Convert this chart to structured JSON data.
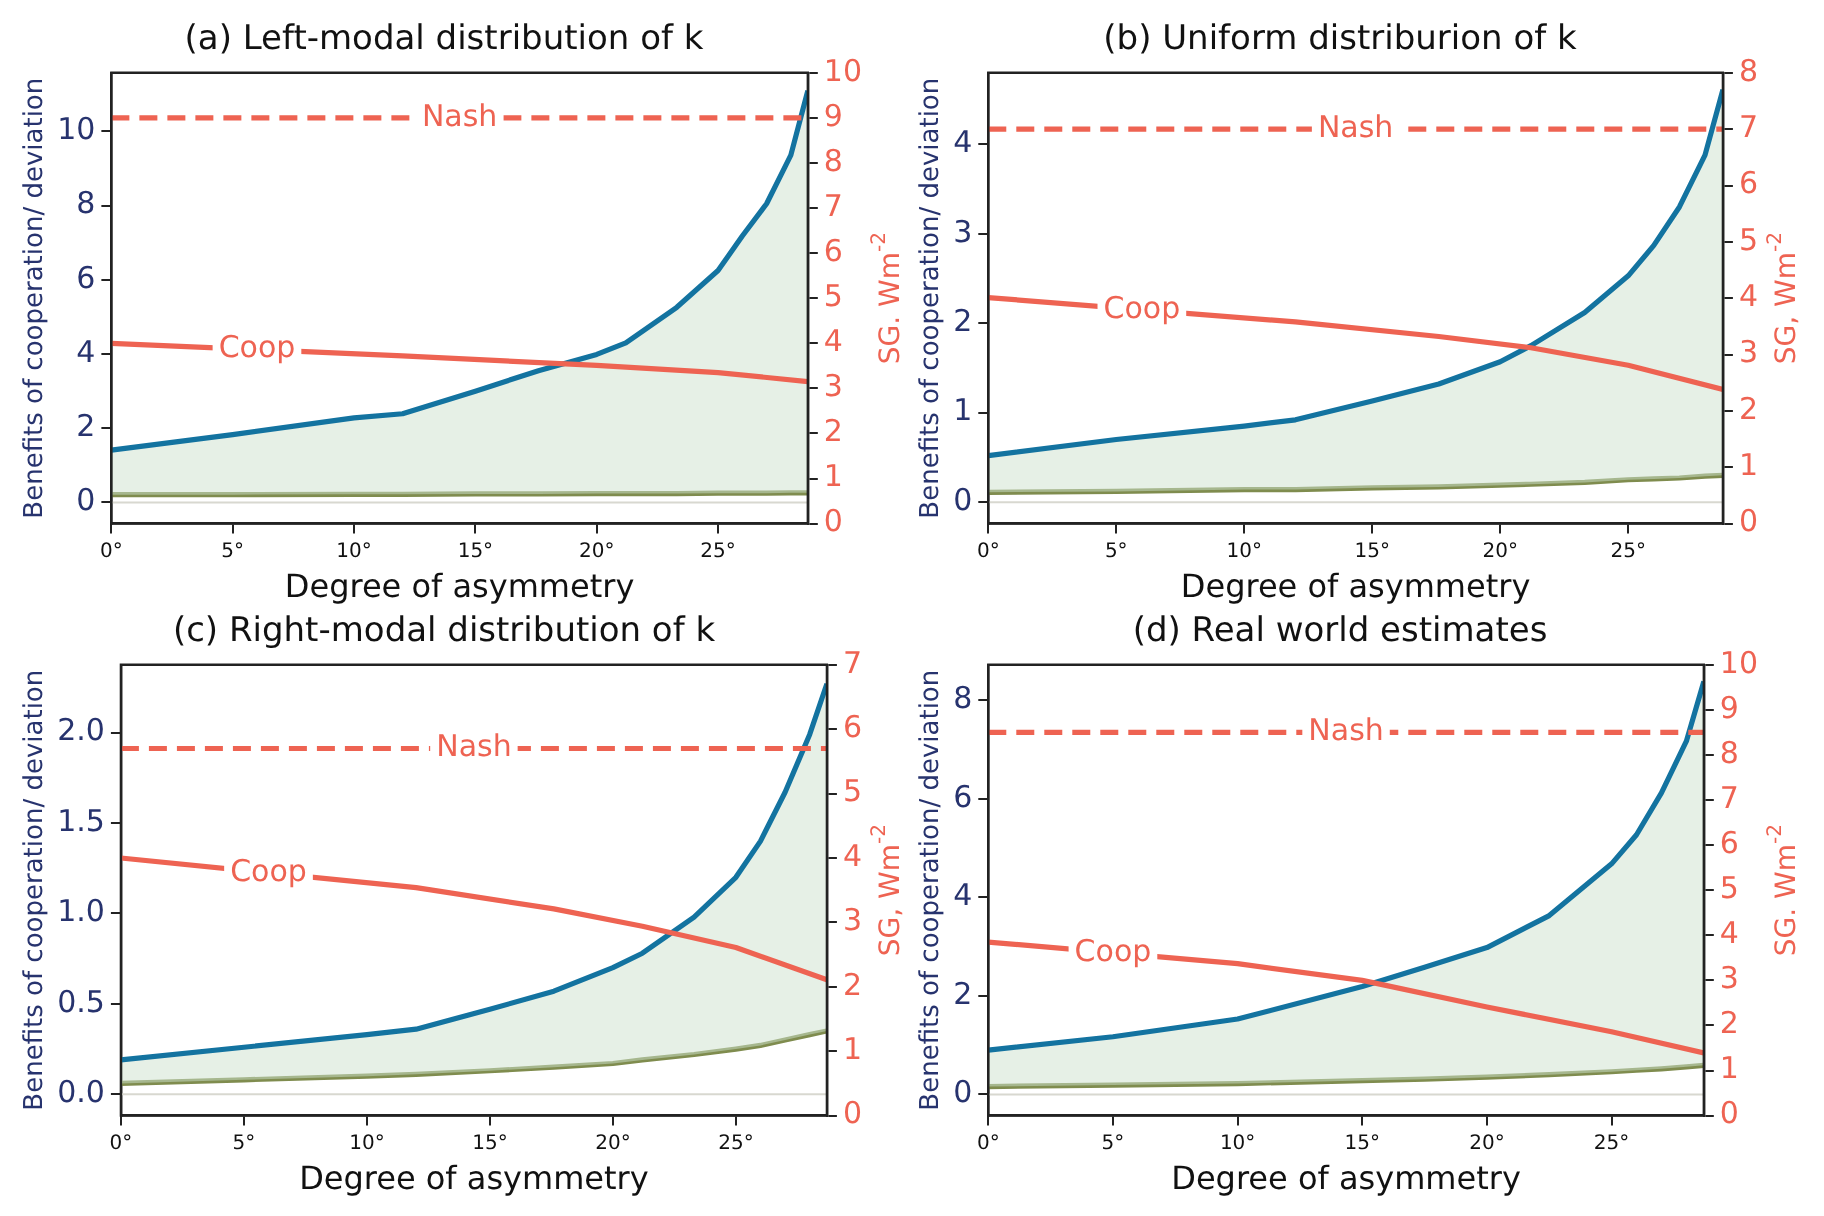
{
  "chart_data": [
    {
      "type": "line",
      "title": "(a) Left-modal distribution of k",
      "xlabel": "Degree of asymmetry",
      "ylabel": "Benefits of cooperation/ deviation",
      "y2label": "SG. Wm$^{-2}$",
      "marker": "none",
      "x": [
        0,
        5,
        10,
        12,
        15,
        17.6,
        20,
        21.2,
        23.3,
        25,
        26,
        27,
        28,
        28.7
      ],
      "series": [
        {
          "type": "area",
          "color": "#1373a0",
          "values": [
            1.41,
            1.83,
            2.28,
            2.39,
            3.0,
            3.55,
            3.99,
            4.3,
            5.26,
            6.25,
            7.18,
            8.05,
            9.36,
            11.1
          ]
        },
        {
          "color": "#7f8c4e",
          "values": [
            0.21,
            0.21,
            0.22,
            0.22,
            0.23,
            0.23,
            0.24,
            0.24,
            0.24,
            0.25,
            0.25,
            0.25,
            0.26,
            0.26
          ]
        },
        {
          "name": "Coop",
          "axis": "y2",
          "color": "#ee6352",
          "x": [
            0,
            12,
            20,
            25,
            28.7
          ],
          "values": [
            4.0,
            3.72,
            3.51,
            3.35,
            3.15
          ]
        },
        {
          "name": "Nash",
          "axis": "y2",
          "color": "#ee6352",
          "line_style": "dashed",
          "x": [
            0,
            28.7
          ],
          "values": [
            9.0,
            9.0
          ]
        }
      ],
      "ref_lines": [
        {
          "axis": "y",
          "value": 0,
          "color": "#d8d8d0"
        }
      ],
      "xlim": [
        0,
        28.7
      ],
      "xticks": [
        {
          "value": 0,
          "label": "0°"
        },
        {
          "value": 5,
          "label": "5°"
        },
        {
          "value": 10,
          "label": "10°"
        },
        {
          "value": 15,
          "label": "15°"
        },
        {
          "value": 20,
          "label": "20°"
        },
        {
          "value": 25,
          "label": "25°"
        }
      ],
      "ylim": [
        -0.57,
        11.58
      ],
      "yticks": [
        0,
        2,
        4,
        6,
        8,
        10
      ],
      "y2lim": [
        0,
        10
      ],
      "y2ticks": [
        0,
        1,
        2,
        3,
        4,
        5,
        6,
        7,
        8,
        9,
        10
      ]
    },
    {
      "type": "line",
      "title": "(b) Uniform distriburion of k",
      "xlabel": "Degree of asymmetry",
      "ylabel": "Benefits of cooperation/ deviation",
      "y2label": "SG, Wm$^{-2}$",
      "marker": "none",
      "x": [
        0,
        5,
        10,
        12,
        15,
        17.6,
        20,
        21.2,
        23.3,
        25,
        26,
        27,
        28,
        28.7
      ],
      "series": [
        {
          "type": "area",
          "color": "#1373a0",
          "values": [
            0.52,
            0.7,
            0.85,
            0.92,
            1.13,
            1.32,
            1.57,
            1.75,
            2.12,
            2.53,
            2.87,
            3.3,
            3.88,
            4.61
          ]
        },
        {
          "color": "#7f8c4e",
          "values": [
            0.11,
            0.12,
            0.14,
            0.14,
            0.16,
            0.17,
            0.19,
            0.2,
            0.22,
            0.25,
            0.26,
            0.27,
            0.29,
            0.3
          ]
        },
        {
          "name": "Coop",
          "axis": "y2",
          "color": "#ee6352",
          "x": [
            0,
            12,
            17.6,
            21.2,
            25,
            28.7
          ],
          "values": [
            4.01,
            3.58,
            3.32,
            3.12,
            2.81,
            2.38
          ]
        },
        {
          "name": "Nash",
          "axis": "y2",
          "color": "#ee6352",
          "line_style": "dashed",
          "x": [
            0,
            28.7
          ],
          "values": [
            7.0,
            7.0
          ]
        }
      ],
      "ref_lines": [
        {
          "axis": "y",
          "value": 0,
          "color": "#d8d8d0"
        }
      ],
      "xlim": [
        0,
        28.7
      ],
      "xticks": [
        {
          "value": 0,
          "label": "0°"
        },
        {
          "value": 5,
          "label": "5°"
        },
        {
          "value": 10,
          "label": "10°"
        },
        {
          "value": 15,
          "label": "15°"
        },
        {
          "value": 20,
          "label": "20°"
        },
        {
          "value": 25,
          "label": "25°"
        }
      ],
      "ylim": [
        -0.24,
        4.8
      ],
      "yticks": [
        0,
        1,
        2,
        3,
        4
      ],
      "y2lim": [
        0,
        8
      ],
      "y2ticks": [
        0,
        1,
        2,
        3,
        4,
        5,
        6,
        7,
        8
      ]
    },
    {
      "type": "line",
      "title": "(c) Right-modal distribution of k",
      "xlabel": "Degree of asymmetry",
      "ylabel": "Benefits of cooperation/ deviation",
      "y2label": "SG, Wm$^{-2}$",
      "marker": "none",
      "x": [
        0,
        5,
        10,
        12,
        15,
        17.6,
        20,
        21.2,
        23.3,
        25,
        26,
        27,
        28,
        28.7
      ],
      "series": [
        {
          "type": "area",
          "color": "#1373a0",
          "values": [
            0.19,
            0.26,
            0.33,
            0.36,
            0.47,
            0.57,
            0.7,
            0.78,
            0.98,
            1.2,
            1.4,
            1.67,
            1.99,
            2.27
          ]
        },
        {
          "color": "#7f8c4e",
          "values": [
            0.06,
            0.08,
            0.1,
            0.11,
            0.13,
            0.15,
            0.17,
            0.19,
            0.22,
            0.25,
            0.27,
            0.3,
            0.33,
            0.35
          ]
        },
        {
          "name": "Coop",
          "axis": "y2",
          "color": "#ee6352",
          "x": [
            0,
            12,
            17.6,
            21.2,
            25,
            28.7
          ],
          "values": [
            4.0,
            3.54,
            3.21,
            2.94,
            2.61,
            2.11
          ]
        },
        {
          "name": "Nash",
          "axis": "y2",
          "color": "#ee6352",
          "line_style": "dashed",
          "x": [
            0,
            28.7
          ],
          "values": [
            5.7,
            5.7
          ]
        }
      ],
      "ref_lines": [
        {
          "axis": "y",
          "value": 0,
          "color": "#d8d8d0"
        }
      ],
      "xlim": [
        0,
        28.7
      ],
      "xticks": [
        {
          "value": 0,
          "label": "0°"
        },
        {
          "value": 5,
          "label": "5°"
        },
        {
          "value": 10,
          "label": "10°"
        },
        {
          "value": 15,
          "label": "15°"
        },
        {
          "value": 20,
          "label": "20°"
        },
        {
          "value": 25,
          "label": "25°"
        }
      ],
      "ylim": [
        -0.118,
        2.375
      ],
      "yticks": [
        {
          "value": 0,
          "label": "0.0"
        },
        {
          "value": 0.5,
          "label": "0.5"
        },
        {
          "value": 1,
          "label": "1.0"
        },
        {
          "value": 1.5,
          "label": "1.5"
        },
        {
          "value": 2,
          "label": "2.0"
        }
      ],
      "y2lim": [
        0,
        7
      ],
      "y2ticks": [
        0,
        1,
        2,
        3,
        4,
        5,
        6,
        7
      ]
    },
    {
      "type": "line",
      "title": "(d) Real world estimates",
      "xlabel": "Degree of asymmetry",
      "ylabel": "Benefits of cooperation/ deviation",
      "y2label": "SG. Wm$^{-2}$",
      "marker": "none",
      "x": [
        0,
        5,
        10,
        15,
        17.5,
        20,
        22.5,
        25,
        26,
        27,
        28,
        28.7
      ],
      "series": [
        {
          "type": "area",
          "color": "#1373a0",
          "values": [
            0.9,
            1.17,
            1.53,
            2.19,
            2.58,
            2.98,
            3.63,
            4.68,
            5.27,
            6.12,
            7.17,
            8.38
          ]
        },
        {
          "color": "#7f8c4e",
          "values": [
            0.16,
            0.19,
            0.22,
            0.28,
            0.31,
            0.35,
            0.4,
            0.46,
            0.49,
            0.52,
            0.56,
            0.59
          ]
        },
        {
          "name": "Coop",
          "axis": "y2",
          "color": "#ee6352",
          "x": [
            0,
            10,
            15,
            20,
            25,
            28.7
          ],
          "values": [
            3.85,
            3.37,
            3.0,
            2.41,
            1.86,
            1.39
          ]
        },
        {
          "name": "Nash",
          "axis": "y2",
          "color": "#ee6352",
          "line_style": "dashed",
          "x": [
            0,
            28.7
          ],
          "values": [
            8.5,
            8.5
          ]
        }
      ],
      "ref_lines": [
        {
          "axis": "y",
          "value": 0,
          "color": "#d8d8d0"
        }
      ],
      "xlim": [
        0,
        28.7
      ],
      "xticks": [
        {
          "value": 0,
          "label": "0°"
        },
        {
          "value": 5,
          "label": "5°"
        },
        {
          "value": 10,
          "label": "10°"
        },
        {
          "value": 15,
          "label": "15°"
        },
        {
          "value": 20,
          "label": "20°"
        },
        {
          "value": 25,
          "label": "25°"
        }
      ],
      "ylim": [
        -0.43,
        8.72
      ],
      "yticks": [
        0,
        2,
        4,
        6,
        8
      ],
      "y2lim": [
        0,
        10
      ],
      "y2ticks": [
        0,
        1,
        2,
        3,
        4,
        5,
        6,
        7,
        8,
        9,
        10
      ]
    }
  ]
}
